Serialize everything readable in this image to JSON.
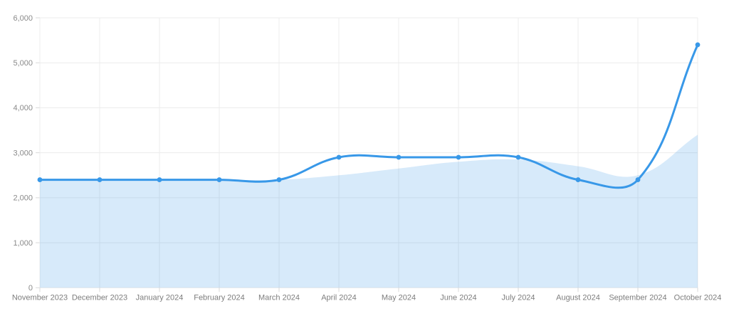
{
  "chart": {
    "background": "#ffffff",
    "accent_line_color": "#3898E8",
    "area_fill_color": "rgba(56,152,232,0.2)",
    "grid_color": "#ececec",
    "tick_mark_color": "#d9d9d9",
    "y_label_color": "#8a8a8a",
    "x_label_color": "#7d7d7d",
    "point_color": "#3898E8"
  },
  "chart_data": {
    "type": "line",
    "title": "",
    "categories": [
      "November 2023",
      "December 2023",
      "January 2024",
      "February 2024",
      "March 2024",
      "April 2024",
      "May 2024",
      "June 2024",
      "July 2024",
      "August 2024",
      "September 2024",
      "October 2024"
    ],
    "series": [
      {
        "name": "monthly-values",
        "style": "line-with-points",
        "color": "#3898E8",
        "point_radius": 3.4,
        "line_width": 3,
        "values": [
          2400,
          2400,
          2400,
          2400,
          2400,
          2900,
          2900,
          2900,
          2900,
          2400,
          2400,
          5400
        ]
      },
      {
        "name": "secondary-trend",
        "style": "area",
        "color": "rgba(56,152,232,0.2)",
        "values": [
          2400,
          2400,
          2400,
          2400,
          2400,
          2500,
          2650,
          2800,
          2850,
          2700,
          2500,
          3400
        ]
      }
    ],
    "xlabel": "",
    "ylabel": "",
    "ylim": [
      0,
      6000
    ],
    "y_tick_values": [
      0,
      1000,
      2000,
      3000,
      4000,
      5000,
      6000
    ],
    "y_ticks": [
      "0",
      "1,000",
      "2,000",
      "3,000",
      "4,000",
      "5,000",
      "6,000"
    ],
    "grid": true,
    "legend_position": "none",
    "smoothing_tension": 0.4
  }
}
